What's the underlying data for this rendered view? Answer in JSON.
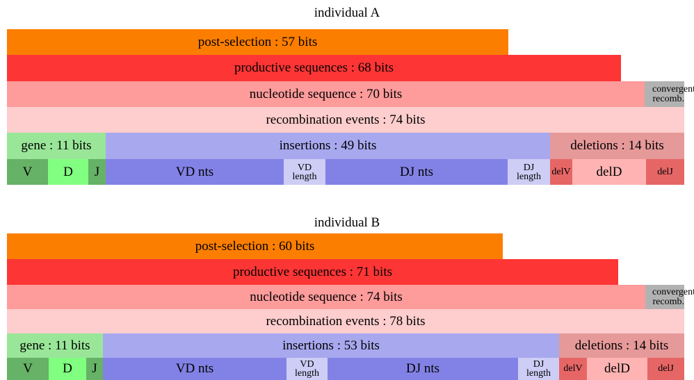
{
  "colors": {
    "post_selection": "#fc7e00",
    "productive": "#fe3535",
    "nucleotide": "#fe9b9b",
    "recombination": "#fecdcd",
    "convergent": "#b2b2b2",
    "gene": "#99e699",
    "V": "#66b266",
    "D": "#80ff80",
    "J": "#66b266",
    "insertions": "#a8a8ef",
    "nts": "#8282e6",
    "length": "#cdcdf5",
    "deletions": "#e69999",
    "delV": "#e66666",
    "delD": "#ffb3b3",
    "delJ": "#e66666"
  },
  "individuals": [
    {
      "title": "individual A",
      "post_selection": "post-selection : 57 bits",
      "productive": "productive sequences : 68 bits",
      "nucleotide": "nucleotide sequence : 70 bits",
      "convergent_line1": "convergent",
      "convergent_line2": "recomb.",
      "recombination": "recombination events : 74 bits",
      "gene": "gene : 11 bits",
      "insertions": "insertions : 49 bits",
      "deletions": "deletions : 14 bits",
      "V": "V",
      "D": "D",
      "J": "J",
      "vd_nts": "VD nts",
      "vd_len_1": "VD",
      "vd_len_2": "length",
      "dj_nts": "DJ nts",
      "dj_len_1": "DJ",
      "dj_len_2": "length",
      "delV": "delV",
      "delD": "delD",
      "delJ": "delJ"
    },
    {
      "title": "individual B",
      "post_selection": "post-selection : 60 bits",
      "productive": "productive sequences : 71 bits",
      "nucleotide": "nucleotide sequence : 74 bits",
      "convergent_line1": "convergent",
      "convergent_line2": "recomb.",
      "recombination": "recombination events : 78 bits",
      "gene": "gene : 11 bits",
      "insertions": "insertions : 53 bits",
      "deletions": "deletions : 14 bits",
      "V": "V",
      "D": "D",
      "J": "J",
      "vd_nts": "VD nts",
      "vd_len_1": "VD",
      "vd_len_2": "length",
      "dj_nts": "DJ nts",
      "dj_len_1": "DJ",
      "dj_len_2": "length",
      "delV": "delV",
      "delD": "delD",
      "delJ": "delJ"
    }
  ]
}
